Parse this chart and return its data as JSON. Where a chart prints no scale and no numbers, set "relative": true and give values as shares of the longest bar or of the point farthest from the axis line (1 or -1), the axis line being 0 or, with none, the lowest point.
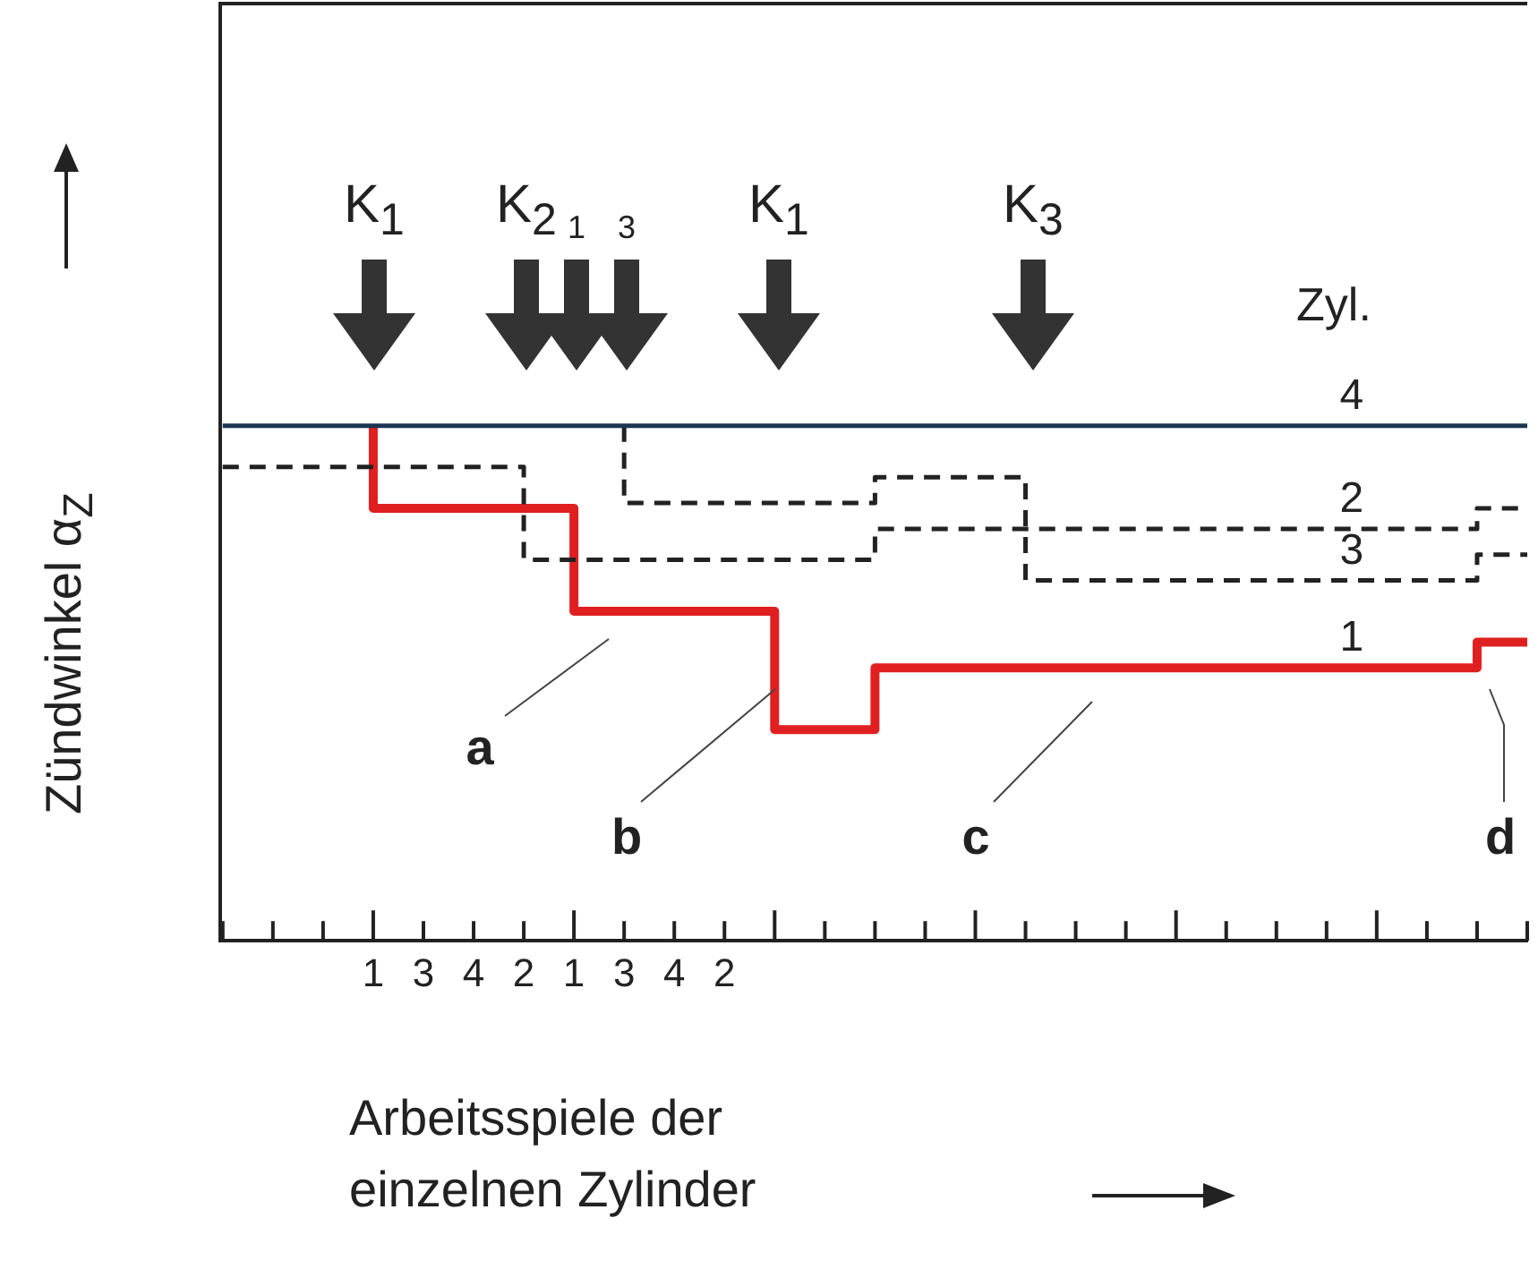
{
  "chart_data": {
    "type": "step",
    "relative": true,
    "xlabel": "Arbeitsspiele der einzelnen Zylinder",
    "ylabel": "Zündwinkel α$_{Z}$",
    "categories": [
      null,
      null,
      null,
      "1",
      "3",
      "4",
      "2",
      "1",
      "3",
      "4",
      "2",
      null,
      null,
      null,
      null,
      null,
      null,
      null,
      null,
      null,
      null,
      null,
      null,
      null,
      null,
      null,
      null
    ],
    "grid": false,
    "legend": false,
    "series": [
      {
        "name": "4",
        "color": "#1a3550",
        "line_style": "solid",
        "values": [
          1.0,
          1.0,
          1.0,
          1.0,
          1.0,
          1.0,
          1.0,
          1.0,
          1.0,
          1.0,
          1.0,
          1.0,
          1.0,
          1.0,
          1.0,
          1.0,
          1.0,
          1.0,
          1.0,
          1.0,
          1.0,
          1.0,
          1.0,
          1.0,
          1.0,
          1.0,
          1.0
        ]
      },
      {
        "name": "2",
        "color": "#222222",
        "line_style": "dashed",
        "values": [
          0.92,
          0.92,
          0.92,
          0.92,
          0.92,
          0.92,
          0.92,
          0.74,
          0.74,
          0.74,
          0.74,
          0.74,
          0.74,
          0.74,
          0.8,
          0.8,
          0.8,
          0.8,
          0.8,
          0.8,
          0.8,
          0.8,
          0.8,
          0.8,
          0.8,
          0.8,
          0.84
        ]
      },
      {
        "name": "3",
        "color": "#222222",
        "line_style": "dashed",
        "values": [
          null,
          null,
          null,
          null,
          null,
          null,
          null,
          null,
          1.0,
          0.85,
          0.85,
          0.85,
          0.85,
          0.85,
          0.9,
          0.9,
          0.9,
          0.7,
          0.7,
          0.7,
          0.7,
          0.7,
          0.7,
          0.7,
          0.7,
          0.7,
          0.75
        ]
      },
      {
        "name": "1",
        "color": "#e02020",
        "line_style": "solid",
        "values": [
          null,
          null,
          null,
          1.0,
          0.84,
          0.84,
          0.84,
          0.84,
          0.64,
          0.64,
          0.64,
          0.64,
          0.41,
          0.41,
          0.53,
          0.53,
          0.53,
          0.53,
          0.53,
          0.53,
          0.53,
          0.53,
          0.53,
          0.53,
          0.53,
          0.53,
          0.58
        ]
      }
    ],
    "annotations": [
      "Zyl.",
      "K$_{1}$",
      "K$_{2}$",
      "1",
      "3",
      "K$_{1}$",
      "K$_{3}$",
      "a",
      "b",
      "c",
      "d"
    ]
  }
}
